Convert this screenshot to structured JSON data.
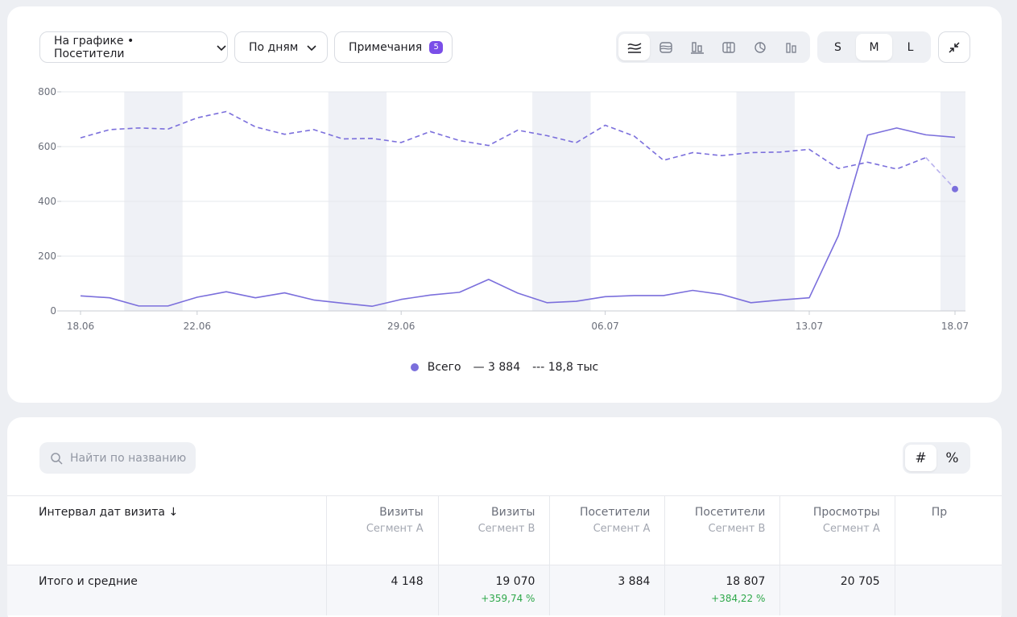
{
  "toolbar": {
    "metric_label": "На графике • Посетители",
    "period_label": "По дням",
    "notes_label": "Примечания",
    "notes_count": "5",
    "chart_type_icons": [
      "line-chart-icon",
      "area-chart-icon",
      "bar-chart-icon",
      "stacked-bar-icon",
      "pie-chart-icon",
      "column-chart-icon"
    ],
    "active_chart_type": "line-chart-icon",
    "sizes": [
      "S",
      "M",
      "L"
    ],
    "active_size": "M"
  },
  "chart_data": {
    "type": "line",
    "y_ticks": [
      "800",
      "600",
      "400",
      "200",
      "0"
    ],
    "ylim": [
      0,
      800
    ],
    "x_tick_labels": [
      "18.06",
      "22.06",
      "29.06",
      "06.07",
      "13.07",
      "18.07"
    ],
    "x_tick_days": [
      0,
      4,
      11,
      18,
      25,
      30
    ],
    "weekend_day_starts": [
      1.5,
      8.5,
      15.5,
      22.5,
      29.5
    ],
    "series": [
      {
        "style": "solid",
        "values": [
          55,
          48,
          18,
          18,
          50,
          70,
          48,
          66,
          40,
          28,
          17,
          42,
          58,
          68,
          115,
          65,
          30,
          35,
          52,
          56,
          56,
          75,
          60,
          30,
          40,
          48,
          275,
          642,
          668,
          643,
          634
        ]
      },
      {
        "style": "dashed",
        "values": [
          632,
          662,
          668,
          664,
          705,
          728,
          672,
          645,
          662,
          628,
          630,
          615,
          655,
          622,
          604,
          660,
          640,
          614,
          678,
          638,
          550,
          578,
          567,
          578,
          580,
          590,
          520,
          543,
          518,
          560,
          445
        ]
      }
    ],
    "grid": true,
    "color": "#7b6fdc"
  },
  "legend": {
    "name": "Всего",
    "solid_value": "— 3 884",
    "dashed_value": "--- 18,8 тыс",
    "color": "#7b6fdc"
  },
  "search": {
    "placeholder": "Найти по названию"
  },
  "number_switch": [
    "#",
    "%"
  ],
  "table": {
    "first_header": "Интервал дат визита ↓",
    "columns": [
      {
        "title": "Визиты",
        "segment": "Сегмент A"
      },
      {
        "title": "Визиты",
        "segment": "Сегмент B"
      },
      {
        "title": "Посетители",
        "segment": "Сегмент A"
      },
      {
        "title": "Посетители",
        "segment": "Сегмент B"
      },
      {
        "title": "Просмотры",
        "segment": "Сегмент A"
      },
      {
        "title": "Пр",
        "segment": ""
      }
    ],
    "totals": {
      "label": "Итого и средние",
      "cells": [
        {
          "value": "4 148",
          "delta": ""
        },
        {
          "value": "19 070",
          "delta": "+359,74 %"
        },
        {
          "value": "3 884",
          "delta": ""
        },
        {
          "value": "18 807",
          "delta": "+384,22 %"
        },
        {
          "value": "20 705",
          "delta": ""
        },
        {
          "value": "",
          "delta": ""
        }
      ]
    }
  }
}
